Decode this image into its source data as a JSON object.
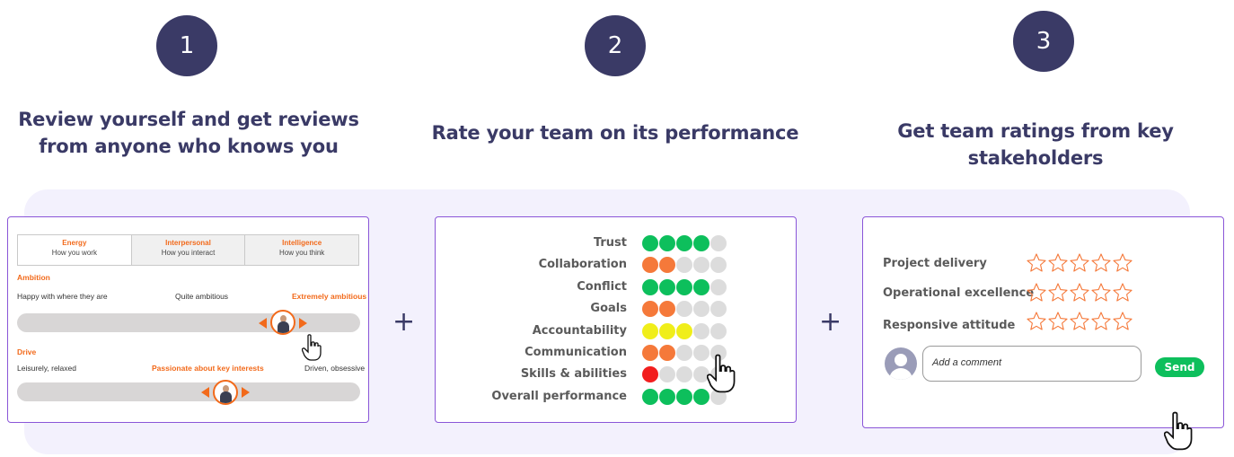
{
  "steps": [
    {
      "number": "1",
      "heading_line1": "Review yourself and get reviews",
      "heading_line2": "from anyone who knows you"
    },
    {
      "number": "2",
      "heading_line1": "Rate your team on its performance"
    },
    {
      "number": "3",
      "heading_line1": "Get team ratings from key stakeholders"
    }
  ],
  "plus_sign": "+",
  "panel1": {
    "tabs": [
      {
        "title": "Energy",
        "subtitle": "How you work"
      },
      {
        "title": "Interpersonal",
        "subtitle": "How you interact"
      },
      {
        "title": "Intelligence",
        "subtitle": "How you think"
      }
    ],
    "ambition": {
      "label": "Ambition",
      "left": "Happy with where they are",
      "middle": "Quite ambitious",
      "right": "Extremely ambitious",
      "selected": "right"
    },
    "drive": {
      "label": "Drive",
      "left": "Leisurely, relaxed",
      "middle": "Passionate about key interests",
      "right": "Driven, obsessive",
      "selected": "middle"
    }
  },
  "panel2": {
    "colors": {
      "green": "#0dbf5c",
      "orange": "#f5793a",
      "yellow": "#f0ee1a",
      "red": "#f21e1e",
      "empty": "#dcdcdc"
    },
    "ratings": [
      {
        "label": "Trust",
        "filled": 4,
        "color": "green"
      },
      {
        "label": "Collaboration",
        "filled": 2,
        "color": "orange"
      },
      {
        "label": "Conflict",
        "filled": 4,
        "color": "green"
      },
      {
        "label": "Goals",
        "filled": 2,
        "color": "orange"
      },
      {
        "label": "Accountability",
        "filled": 3,
        "color": "yellow"
      },
      {
        "label": "Communication",
        "filled": 2,
        "color": "orange"
      },
      {
        "label": "Skills & abilities",
        "filled": 1,
        "color": "red"
      },
      {
        "label": "Overall performance",
        "filled": 4,
        "color": "green"
      }
    ],
    "max": 5
  },
  "panel3": {
    "criteria": [
      {
        "label": "Project delivery",
        "stars": 0
      },
      {
        "label": "Operational excellence",
        "stars": 0
      },
      {
        "label": "Responsive attitude",
        "stars": 0
      }
    ],
    "max_stars": 5,
    "comment_placeholder": "Add a comment",
    "send_label": "Send"
  },
  "icons": [
    "hand-pointer-icon",
    "star-outline-icon",
    "user-avatar-icon",
    "arrow-left-icon",
    "arrow-right-icon"
  ]
}
